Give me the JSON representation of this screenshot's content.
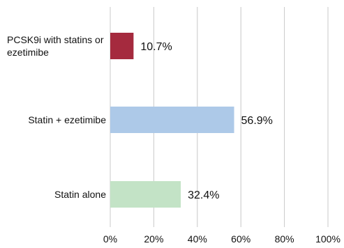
{
  "chart_data": {
    "type": "bar",
    "orientation": "horizontal",
    "title": "",
    "xlabel": "",
    "ylabel": "",
    "xlim": [
      0,
      100
    ],
    "grid": true,
    "legend": "none",
    "categories": [
      "PCSK9i with statins or ezetimibe",
      "Statin + ezetimibe",
      "Statin alone"
    ],
    "category_lines": [
      [
        "PCSK9i with statins or",
        "ezetimibe"
      ],
      [
        "Statin + ezetimibe"
      ],
      [
        "Statin alone"
      ]
    ],
    "values": [
      10.7,
      56.9,
      32.4
    ],
    "data_labels": [
      "10.7%",
      "56.9%",
      "32.4%"
    ],
    "colors": [
      "#a52a3e",
      "#adc9e8",
      "#c3e3c6"
    ],
    "ticks": [
      0,
      20,
      40,
      60,
      80,
      100
    ],
    "tick_labels": [
      "0%",
      "20%",
      "40%",
      "60%",
      "80%",
      "100%"
    ]
  }
}
